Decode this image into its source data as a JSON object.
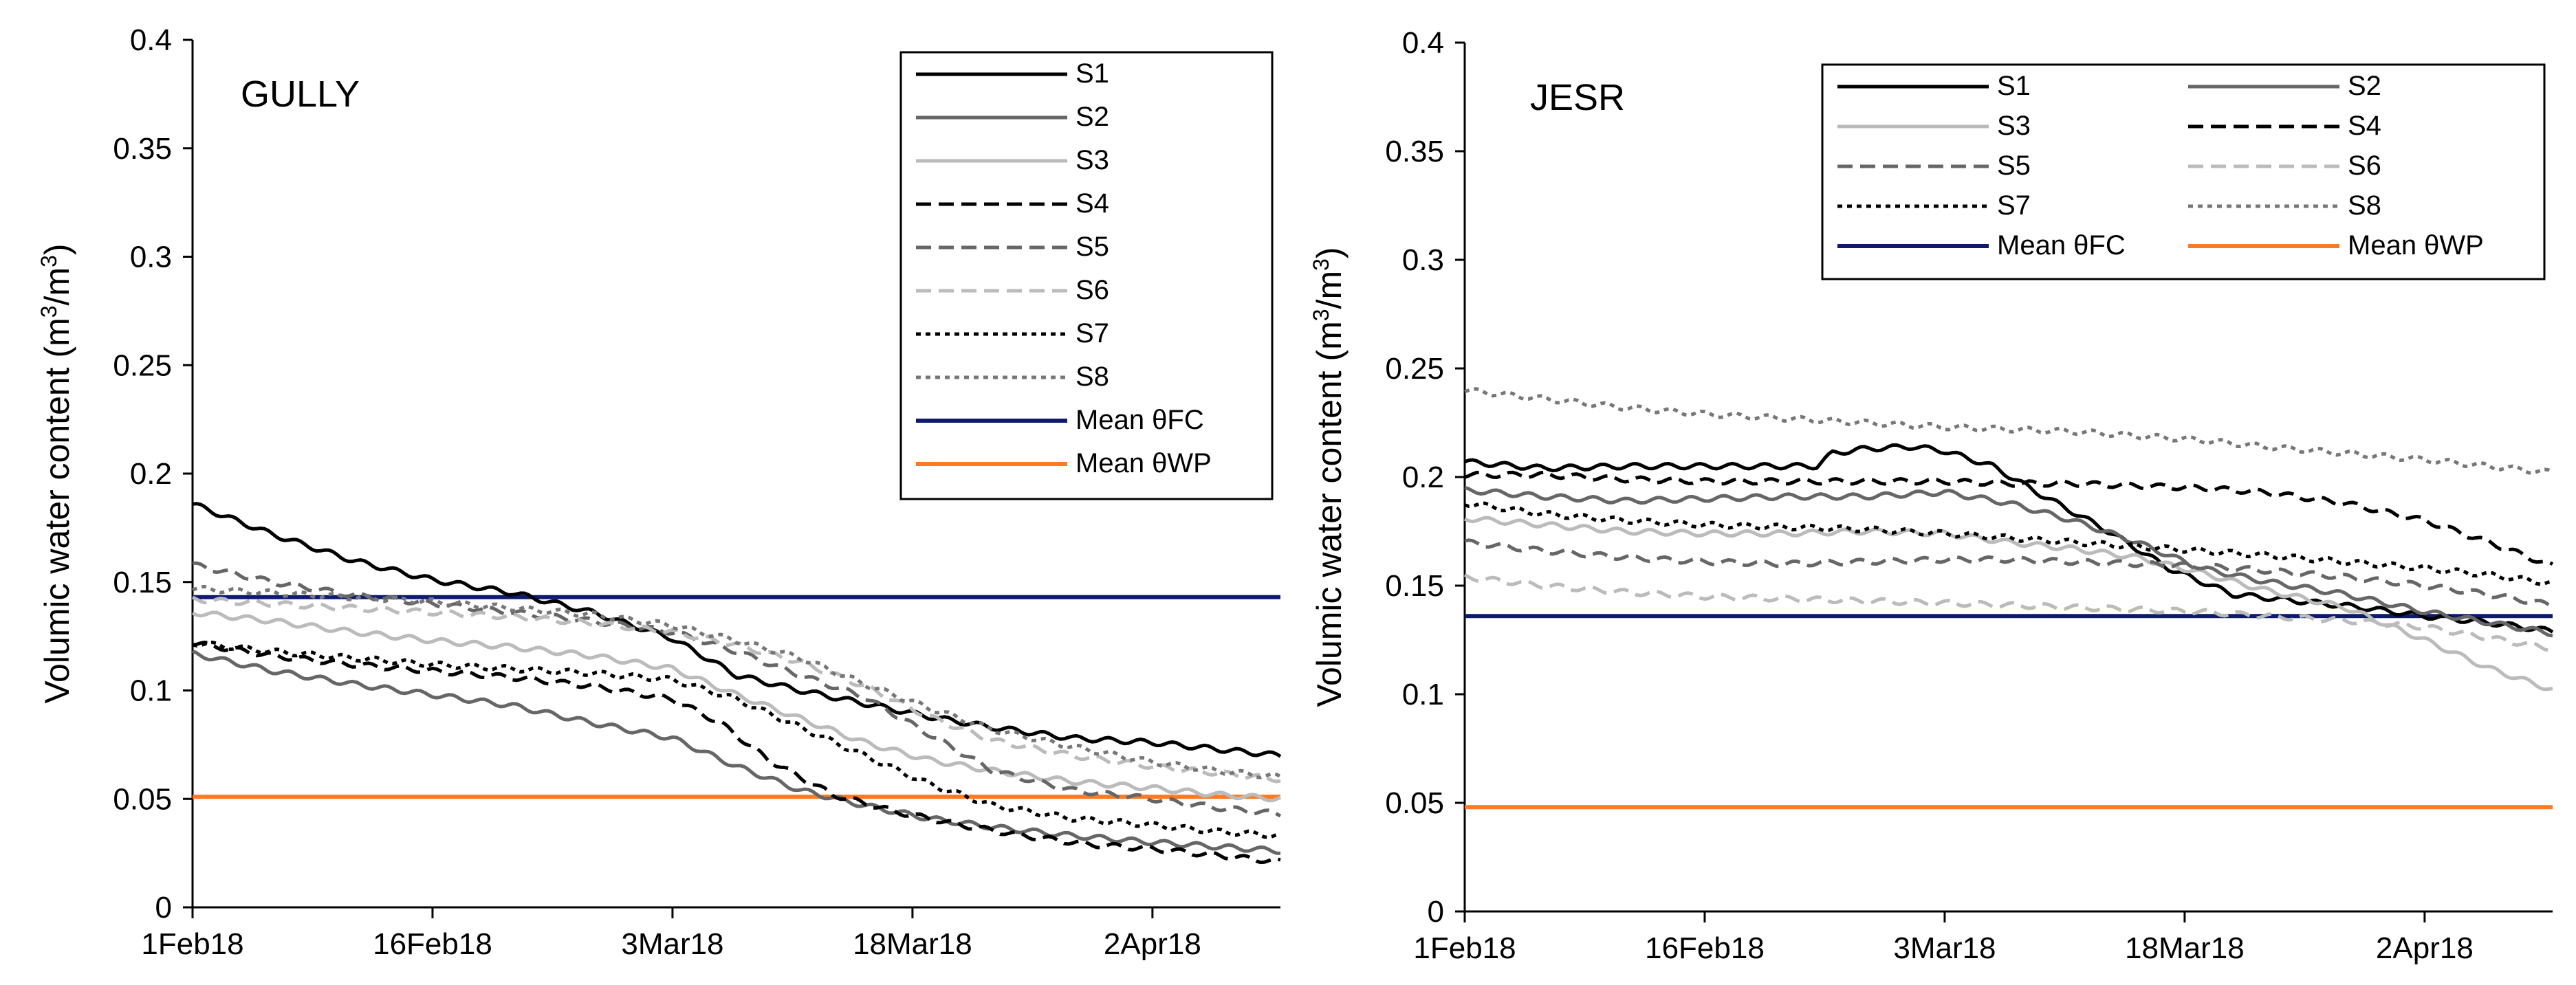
{
  "chart_data": [
    {
      "type": "line",
      "title": "GULLY",
      "xlabel": "",
      "ylabel": "Volumic water content (m3/m3)",
      "ylim": [
        0,
        0.4
      ],
      "yticks": [
        0,
        0.05,
        0.1,
        0.15,
        0.2,
        0.25,
        0.3,
        0.35,
        0.4
      ],
      "ytick_labels": [
        "0",
        "0.05",
        "0.1",
        "0.15",
        "0.2",
        "0.25",
        "0.3",
        "0.35",
        "0.4"
      ],
      "xlim_days": [
        0,
        68
      ],
      "xticks_days": [
        0,
        15,
        30,
        45,
        60
      ],
      "xtick_labels": [
        "1Feb18",
        "16Feb18",
        "3Mar18",
        "18Mar18",
        "2Apr18"
      ],
      "legend_position": "top-right",
      "legend_columns": 1,
      "series": [
        {
          "name": "S1",
          "color": "#000000",
          "dash": "solid",
          "x": [
            0,
            5,
            10,
            15,
            20,
            25,
            30,
            34,
            38,
            42,
            46,
            50,
            55,
            60,
            64,
            68
          ],
          "values": [
            0.186,
            0.172,
            0.16,
            0.151,
            0.145,
            0.136,
            0.124,
            0.107,
            0.1,
            0.094,
            0.088,
            0.083,
            0.078,
            0.076,
            0.073,
            0.07
          ]
        },
        {
          "name": "S2",
          "color": "#666666",
          "dash": "solid",
          "x": [
            0,
            5,
            10,
            15,
            20,
            25,
            30,
            34,
            38,
            42,
            46,
            50,
            55,
            60,
            64,
            68
          ],
          "values": [
            0.117,
            0.109,
            0.103,
            0.098,
            0.093,
            0.085,
            0.078,
            0.065,
            0.054,
            0.047,
            0.041,
            0.037,
            0.033,
            0.03,
            0.028,
            0.026
          ]
        },
        {
          "name": "S3",
          "color": "#bbbbbb",
          "dash": "solid",
          "x": [
            0,
            5,
            10,
            15,
            20,
            25,
            30,
            34,
            38,
            42,
            46,
            50,
            55,
            60,
            64,
            68
          ],
          "values": [
            0.136,
            0.132,
            0.127,
            0.123,
            0.12,
            0.116,
            0.11,
            0.098,
            0.087,
            0.076,
            0.068,
            0.063,
            0.058,
            0.055,
            0.052,
            0.05
          ]
        },
        {
          "name": "S4",
          "color": "#000000",
          "dash": "dashed",
          "x": [
            0,
            5,
            10,
            15,
            20,
            25,
            30,
            33,
            36,
            40,
            44,
            48,
            52,
            56,
            60,
            64,
            68
          ],
          "values": [
            0.122,
            0.116,
            0.112,
            0.109,
            0.106,
            0.102,
            0.096,
            0.085,
            0.068,
            0.052,
            0.044,
            0.038,
            0.033,
            0.029,
            0.027,
            0.024,
            0.021
          ]
        },
        {
          "name": "S5",
          "color": "#666666",
          "dash": "dashed",
          "x": [
            0,
            5,
            10,
            15,
            20,
            25,
            30,
            34,
            38,
            42,
            46,
            50,
            55,
            60,
            64,
            68
          ],
          "values": [
            0.158,
            0.15,
            0.144,
            0.14,
            0.136,
            0.132,
            0.127,
            0.118,
            0.107,
            0.097,
            0.08,
            0.063,
            0.054,
            0.05,
            0.046,
            0.043
          ]
        },
        {
          "name": "S6",
          "color": "#bbbbbb",
          "dash": "dashed",
          "x": [
            0,
            5,
            10,
            15,
            20,
            25,
            30,
            34,
            38,
            42,
            46,
            50,
            55,
            60,
            64,
            68
          ],
          "values": [
            0.142,
            0.14,
            0.138,
            0.136,
            0.134,
            0.131,
            0.127,
            0.121,
            0.113,
            0.102,
            0.088,
            0.077,
            0.07,
            0.065,
            0.062,
            0.059
          ]
        },
        {
          "name": "S7",
          "color": "#000000",
          "dash": "dotted",
          "x": [
            0,
            5,
            10,
            15,
            20,
            25,
            30,
            34,
            38,
            42,
            46,
            50,
            55,
            60,
            64,
            68
          ],
          "values": [
            0.122,
            0.118,
            0.115,
            0.112,
            0.11,
            0.108,
            0.105,
            0.096,
            0.083,
            0.07,
            0.057,
            0.047,
            0.041,
            0.038,
            0.035,
            0.033
          ]
        },
        {
          "name": "S8",
          "color": "#777777",
          "dash": "dotted",
          "x": [
            0,
            5,
            10,
            15,
            20,
            25,
            30,
            34,
            38,
            42,
            46,
            50,
            55,
            60,
            64,
            68
          ],
          "values": [
            0.147,
            0.145,
            0.143,
            0.141,
            0.138,
            0.135,
            0.13,
            0.123,
            0.115,
            0.103,
            0.092,
            0.082,
            0.074,
            0.067,
            0.063,
            0.06
          ]
        },
        {
          "name": "Mean θFC",
          "color": "#0d1a6e",
          "dash": "solid",
          "x": [
            0,
            68
          ],
          "values": [
            0.143,
            0.143
          ]
        },
        {
          "name": "Mean θWP",
          "color": "#ff7a22",
          "dash": "solid",
          "x": [
            0,
            68
          ],
          "values": [
            0.051,
            0.051
          ]
        }
      ]
    },
    {
      "type": "line",
      "title": "JESR",
      "xlabel": "",
      "ylabel": "Volumic water content (m3/m3)",
      "ylim": [
        0,
        0.4
      ],
      "yticks": [
        0,
        0.05,
        0.1,
        0.15,
        0.2,
        0.25,
        0.3,
        0.35,
        0.4
      ],
      "ytick_labels": [
        "0",
        "0.05",
        "0.1",
        "0.15",
        "0.2",
        "0.25",
        "0.3",
        "0.35",
        "0.4"
      ],
      "xlim_days": [
        0,
        68
      ],
      "xticks_days": [
        0,
        15,
        30,
        45,
        60
      ],
      "xtick_labels": [
        "1Feb18",
        "16Feb18",
        "3Mar18",
        "18Mar18",
        "2Apr18"
      ],
      "legend_position": "top-right",
      "legend_columns": 2,
      "series": [
        {
          "name": "S1",
          "color": "#000000",
          "dash": "solid",
          "x": [
            0,
            5,
            10,
            15,
            20,
            22,
            23,
            25,
            28,
            30,
            33,
            36,
            40,
            44,
            48,
            52,
            56,
            60,
            64,
            68
          ],
          "values": [
            0.207,
            0.204,
            0.205,
            0.205,
            0.205,
            0.205,
            0.211,
            0.213,
            0.214,
            0.212,
            0.205,
            0.192,
            0.176,
            0.158,
            0.146,
            0.143,
            0.14,
            0.136,
            0.133,
            0.129
          ]
        },
        {
          "name": "S2",
          "color": "#666666",
          "dash": "solid",
          "x": [
            0,
            5,
            10,
            15,
            20,
            25,
            30,
            34,
            38,
            42,
            46,
            50,
            55,
            60,
            64,
            68
          ],
          "values": [
            0.194,
            0.191,
            0.189,
            0.19,
            0.191,
            0.191,
            0.193,
            0.188,
            0.18,
            0.17,
            0.158,
            0.152,
            0.146,
            0.138,
            0.133,
            0.128
          ]
        },
        {
          "name": "S3",
          "color": "#bbbbbb",
          "dash": "solid",
          "x": [
            0,
            5,
            10,
            15,
            20,
            25,
            30,
            34,
            38,
            42,
            46,
            50,
            55,
            60,
            64,
            68
          ],
          "values": [
            0.181,
            0.178,
            0.175,
            0.174,
            0.174,
            0.175,
            0.174,
            0.17,
            0.167,
            0.163,
            0.156,
            0.148,
            0.14,
            0.125,
            0.112,
            0.102
          ]
        },
        {
          "name": "S4",
          "color": "#000000",
          "dash": "dashed",
          "x": [
            0,
            5,
            10,
            15,
            20,
            25,
            30,
            34,
            38,
            42,
            46,
            50,
            55,
            60,
            64,
            68
          ],
          "values": [
            0.201,
            0.201,
            0.199,
            0.198,
            0.198,
            0.198,
            0.198,
            0.197,
            0.197,
            0.196,
            0.195,
            0.193,
            0.188,
            0.18,
            0.17,
            0.159
          ]
        },
        {
          "name": "S5",
          "color": "#666666",
          "dash": "dashed",
          "x": [
            0,
            5,
            10,
            15,
            20,
            25,
            30,
            34,
            38,
            42,
            46,
            50,
            55,
            60,
            64,
            68
          ],
          "values": [
            0.17,
            0.166,
            0.163,
            0.161,
            0.16,
            0.161,
            0.162,
            0.162,
            0.161,
            0.16,
            0.159,
            0.157,
            0.154,
            0.15,
            0.146,
            0.141
          ]
        },
        {
          "name": "S6",
          "color": "#bbbbbb",
          "dash": "dashed",
          "x": [
            0,
            5,
            10,
            15,
            20,
            25,
            30,
            34,
            38,
            42,
            46,
            50,
            55,
            60,
            64,
            68
          ],
          "values": [
            0.154,
            0.15,
            0.147,
            0.145,
            0.144,
            0.143,
            0.142,
            0.141,
            0.14,
            0.139,
            0.138,
            0.136,
            0.134,
            0.131,
            0.126,
            0.121
          ]
        },
        {
          "name": "S7",
          "color": "#000000",
          "dash": "dotted",
          "x": [
            0,
            5,
            10,
            15,
            20,
            25,
            30,
            34,
            38,
            42,
            46,
            50,
            55,
            60,
            64,
            68
          ],
          "values": [
            0.188,
            0.183,
            0.18,
            0.178,
            0.177,
            0.176,
            0.174,
            0.172,
            0.17,
            0.168,
            0.166,
            0.164,
            0.161,
            0.158,
            0.155,
            0.151
          ]
        },
        {
          "name": "S8",
          "color": "#777777",
          "dash": "dotted",
          "x": [
            0,
            5,
            10,
            15,
            20,
            25,
            30,
            34,
            38,
            42,
            46,
            50,
            55,
            60,
            64,
            68
          ],
          "values": [
            0.24,
            0.236,
            0.232,
            0.229,
            0.227,
            0.225,
            0.223,
            0.222,
            0.221,
            0.219,
            0.217,
            0.214,
            0.211,
            0.208,
            0.205,
            0.202
          ]
        },
        {
          "name": "Mean θFC",
          "color": "#0d1a6e",
          "dash": "solid",
          "x": [
            0,
            68
          ],
          "values": [
            0.136,
            0.136
          ]
        },
        {
          "name": "Mean θWP",
          "color": "#ff7a22",
          "dash": "solid",
          "x": [
            0,
            68
          ],
          "values": [
            0.048,
            0.048
          ]
        }
      ]
    }
  ]
}
